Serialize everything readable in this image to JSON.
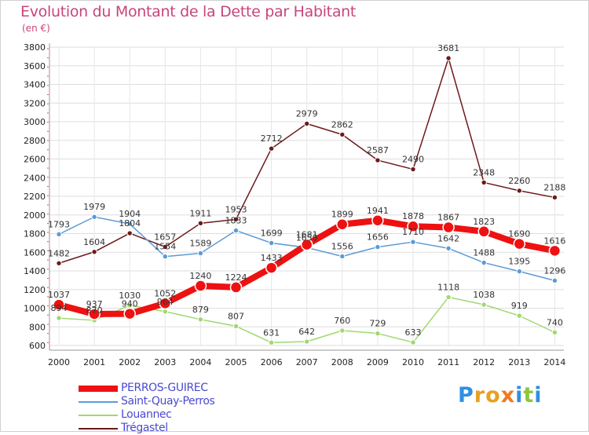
{
  "title": "Evolution du Montant de la Dette par Habitant",
  "unit": "(en €)",
  "logo": {
    "letters": [
      "P",
      "r",
      "o",
      "x",
      "i",
      "t",
      "i"
    ],
    "colors": [
      "#2f8fe0",
      "#e8a020",
      "#e8a020",
      "#f07a1e",
      "#2f8fe0",
      "#8cc63e",
      "#2f8fe0"
    ]
  },
  "chart_data": {
    "type": "line",
    "title": "Evolution du Montant de la Dette par Habitant",
    "ylabel": "(en €)",
    "xlabel": "",
    "ylim": [
      600,
      3800
    ],
    "yticks": [
      600,
      800,
      1000,
      1200,
      1400,
      1600,
      1800,
      2000,
      2200,
      2400,
      2600,
      2800,
      3000,
      3200,
      3400,
      3600,
      3800
    ],
    "categories": [
      "2000",
      "2001",
      "2002",
      "2003",
      "2004",
      "2005",
      "2006",
      "2007",
      "2008",
      "2009",
      "2010",
      "2011",
      "2012",
      "2013",
      "2014"
    ],
    "grid": true,
    "legend_position": "bottom-left",
    "series": [
      {
        "name": "PERROS-GUIREC",
        "color": "#ee1111",
        "values": [
          1037,
          937,
          940,
          1052,
          1240,
          1224,
          1433,
          1681,
          1899,
          1941,
          1878,
          1867,
          1823,
          1690,
          1616
        ]
      },
      {
        "name": "Saint-Quay-Perros",
        "color": "#5b9bd5",
        "values": [
          1793,
          1979,
          1904,
          1554,
          1589,
          1833,
          1699,
          1650,
          1556,
          1656,
          1710,
          1642,
          1488,
          1395,
          1296
        ]
      },
      {
        "name": "Louannec",
        "color": "#a0d870",
        "values": [
          894,
          870,
          1030,
          964,
          879,
          807,
          631,
          642,
          760,
          729,
          633,
          1118,
          1038,
          919,
          740
        ]
      },
      {
        "name": "Trégastel",
        "color": "#6b1a1a",
        "values": [
          1482,
          1604,
          1804,
          1657,
          1911,
          1953,
          2712,
          2979,
          2862,
          2587,
          2490,
          3681,
          2348,
          2260,
          2188
        ]
      }
    ]
  }
}
